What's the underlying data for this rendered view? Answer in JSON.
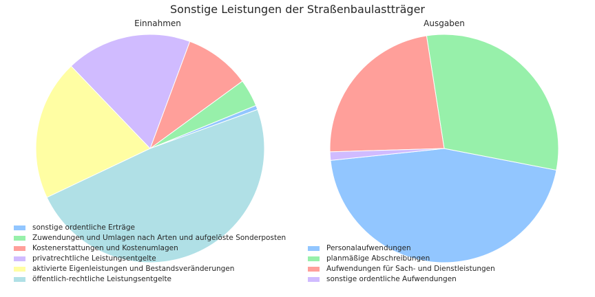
{
  "figure_title": "Sonstige Leistungen der Straßenbaulastträger",
  "chart_data": [
    {
      "type": "pie",
      "title": "Einnahmen",
      "start_angle_deg": 20,
      "legend_position": "lower-left",
      "slices": [
        {
          "label": "sonstige ordentliche Erträge",
          "value": 0.6,
          "color": "#92c6ff"
        },
        {
          "label": "Zuwendungen und Umlagen nach Arten und aufgelöste Sonderposten",
          "value": 3.9,
          "color": "#97f0aa"
        },
        {
          "label": "Kostenerstattungen und Kostenumlagen",
          "value": 9.3,
          "color": "#ff9f9a"
        },
        {
          "label": "privatrechtliche Leistungsentgelte",
          "value": 17.8,
          "color": "#d0bbff"
        },
        {
          "label": "aktivierte Eigenleistungen und Bestandsveränderungen",
          "value": 19.9,
          "color": "#fffea3"
        },
        {
          "label": "öffentlich-rechtliche Leistungsentgelte",
          "value": 48.5,
          "color": "#b0e0e6"
        }
      ]
    },
    {
      "type": "pie",
      "title": "Ausgaben",
      "start_angle_deg": 186,
      "legend_position": "lower-left",
      "slices": [
        {
          "label": "Personalaufwendungen",
          "value": 45.3,
          "color": "#92c6ff"
        },
        {
          "label": "planmäßige Abschreibungen",
          "value": 30.5,
          "color": "#97f0aa"
        },
        {
          "label": "Aufwendungen für Sach- und Dienstleistungen",
          "value": 23.0,
          "color": "#ff9f9a"
        },
        {
          "label": "sonstige ordentliche Aufwendungen",
          "value": 1.2,
          "color": "#d0bbff"
        }
      ]
    }
  ]
}
